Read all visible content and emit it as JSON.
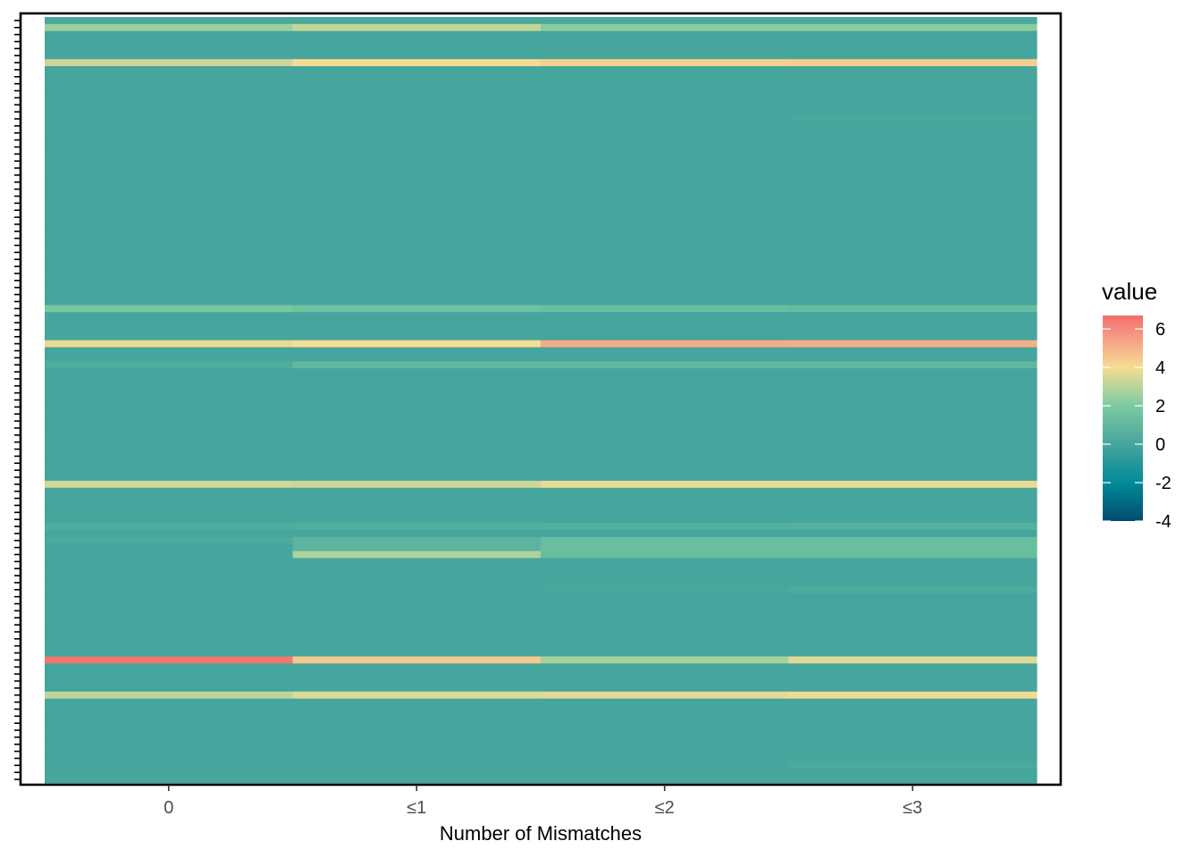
{
  "chart_data": {
    "type": "heatmap",
    "title": "",
    "xlabel": "Number of Mismatches",
    "ylabel": "",
    "columns": [
      "0",
      "≤1",
      "≤2",
      "≤3"
    ],
    "n_rows": 109,
    "default_value": 0,
    "row_value_changes": [
      {
        "row": 0,
        "values": [
          0.2,
          0.2,
          0.2,
          0.2
        ]
      },
      {
        "row": 1,
        "values": [
          2.5,
          3.2,
          2.2,
          2.2
        ]
      },
      {
        "row": 2,
        "values": [
          0,
          0,
          0,
          0
        ]
      },
      {
        "row": 6,
        "values": [
          3.3,
          4.0,
          4.3,
          4.4
        ]
      },
      {
        "row": 7,
        "values": [
          0,
          0,
          0,
          0
        ]
      },
      {
        "row": 14,
        "values": [
          0,
          0,
          0,
          0.1
        ]
      },
      {
        "row": 15,
        "values": [
          0,
          0,
          0,
          0
        ]
      },
      {
        "row": 41,
        "values": [
          1.8,
          1.5,
          1.3,
          1.2
        ]
      },
      {
        "row": 42,
        "values": [
          0,
          0,
          0,
          0
        ]
      },
      {
        "row": 46,
        "values": [
          3.8,
          4.0,
          5.2,
          5.1
        ]
      },
      {
        "row": 47,
        "values": [
          0,
          0,
          0,
          0
        ]
      },
      {
        "row": 49,
        "values": [
          0.3,
          1.0,
          1.0,
          1.0
        ]
      },
      {
        "row": 50,
        "values": [
          0,
          0,
          0,
          0
        ]
      },
      {
        "row": 66,
        "values": [
          3.4,
          3.3,
          3.8,
          3.8
        ]
      },
      {
        "row": 67,
        "values": [
          0,
          0,
          0,
          0
        ]
      },
      {
        "row": 72,
        "values": [
          0.3,
          0.4,
          0.5,
          0.6
        ]
      },
      {
        "row": 73,
        "values": [
          0,
          0,
          0,
          0
        ]
      },
      {
        "row": 74,
        "values": [
          0.2,
          0.8,
          1.3,
          1.3
        ]
      },
      {
        "row": 75,
        "values": [
          0,
          0.8,
          1.3,
          1.3
        ]
      },
      {
        "row": 76,
        "values": [
          0,
          2.8,
          1.3,
          1.3
        ]
      },
      {
        "row": 77,
        "values": [
          0,
          0,
          0,
          0
        ]
      },
      {
        "row": 81,
        "values": [
          0,
          0,
          0.1,
          0.3
        ]
      },
      {
        "row": 82,
        "values": [
          0,
          0,
          0,
          0
        ]
      },
      {
        "row": 91,
        "values": [
          6.5,
          4.5,
          2.7,
          3.6
        ]
      },
      {
        "row": 92,
        "values": [
          0,
          0,
          0,
          0
        ]
      },
      {
        "row": 96,
        "values": [
          3.1,
          3.6,
          3.7,
          3.9
        ]
      },
      {
        "row": 97,
        "values": [
          0,
          0,
          0,
          0
        ]
      },
      {
        "row": 106,
        "values": [
          0,
          0,
          0,
          0.2
        ]
      },
      {
        "row": 107,
        "values": [
          0,
          0,
          0,
          0
        ]
      }
    ],
    "legend": {
      "title": "value",
      "position": "right",
      "range": [
        -4,
        6.7
      ],
      "breaks": [
        6,
        4,
        2,
        0,
        -2,
        -4
      ],
      "break_labels": [
        "6",
        "4",
        "2",
        "0",
        "-2",
        "-4"
      ],
      "colors": [
        "#004c6d",
        "#008b99",
        "#46a59d",
        "#7ccba0",
        "#f6dc93",
        "#f58a7e",
        "#f07068"
      ],
      "color_stops": [
        -4,
        -2,
        0,
        2,
        4,
        6,
        6.7
      ]
    }
  }
}
